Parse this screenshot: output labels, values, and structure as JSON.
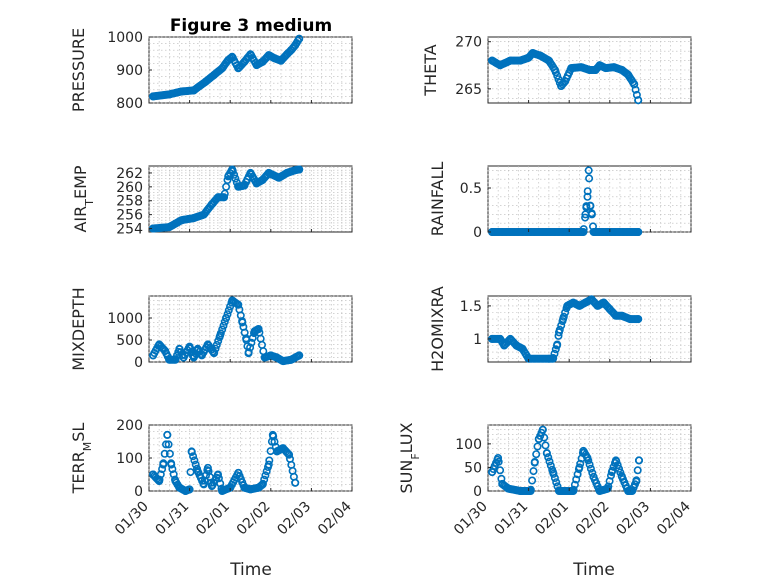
{
  "figure_title": "Figure 3 medium",
  "colors": {
    "marker": "#0072BD",
    "axis": "#262626",
    "grid": "#b9b9b9"
  },
  "x_ticks": [
    "01/30",
    "01/31",
    "02/01",
    "02/02",
    "02/03",
    "02/04"
  ],
  "x_label": "Time",
  "chart_data": [
    {
      "type": "scatter",
      "title": "Figure 3 medium",
      "ylabel": "PRESSURE",
      "xlabel": "",
      "xlim": [
        0,
        5
      ],
      "ylim": [
        800,
        1000
      ],
      "yticks": [
        {
          "v": 800,
          "label": "800"
        },
        {
          "v": 900,
          "label": "900"
        },
        {
          "v": 1000,
          "label": "1000"
        }
      ],
      "knots": [
        [
          0.1,
          820
        ],
        [
          0.5,
          826
        ],
        [
          0.8,
          835
        ],
        [
          1.1,
          838
        ],
        [
          1.4,
          865
        ],
        [
          1.6,
          885
        ],
        [
          1.8,
          905
        ],
        [
          1.95,
          930
        ],
        [
          2.05,
          940
        ],
        [
          2.2,
          905
        ],
        [
          2.35,
          925
        ],
        [
          2.5,
          948
        ],
        [
          2.65,
          915
        ],
        [
          2.8,
          925
        ],
        [
          2.95,
          945
        ],
        [
          3.1,
          935
        ],
        [
          3.25,
          928
        ],
        [
          3.4,
          948
        ],
        [
          3.5,
          960
        ],
        [
          3.6,
          975
        ],
        [
          3.7,
          995
        ]
      ]
    },
    {
      "type": "scatter",
      "title": "",
      "ylabel": "THETA",
      "xlabel": "",
      "xlim": [
        0,
        5
      ],
      "ylim": [
        263.5,
        270.5
      ],
      "yticks": [
        {
          "v": 265,
          "label": "265"
        },
        {
          "v": 270,
          "label": "270"
        }
      ],
      "knots": [
        [
          0.1,
          268
        ],
        [
          0.3,
          267.5
        ],
        [
          0.55,
          268
        ],
        [
          0.8,
          268
        ],
        [
          1.0,
          268.3
        ],
        [
          1.1,
          268.8
        ],
        [
          1.3,
          268.5
        ],
        [
          1.5,
          268
        ],
        [
          1.65,
          267
        ],
        [
          1.8,
          265.3
        ],
        [
          1.9,
          265.8
        ],
        [
          2.05,
          267.2
        ],
        [
          2.3,
          267.3
        ],
        [
          2.5,
          267
        ],
        [
          2.65,
          267
        ],
        [
          2.75,
          267.5
        ],
        [
          2.9,
          267.2
        ],
        [
          3.1,
          267.3
        ],
        [
          3.3,
          267
        ],
        [
          3.45,
          266.5
        ],
        [
          3.6,
          265.5
        ],
        [
          3.7,
          263.8
        ]
      ]
    },
    {
      "type": "scatter",
      "title": "",
      "ylabel": "AIR_TEMP",
      "xlabel": "",
      "xlim": [
        0,
        5
      ],
      "ylim": [
        253.5,
        263
      ],
      "yticks": [
        {
          "v": 254,
          "label": "254"
        },
        {
          "v": 256,
          "label": "256"
        },
        {
          "v": 258,
          "label": "258"
        },
        {
          "v": 260,
          "label": "260"
        },
        {
          "v": 262,
          "label": "262"
        }
      ],
      "knots": [
        [
          0.1,
          254
        ],
        [
          0.5,
          254.2
        ],
        [
          0.8,
          255.2
        ],
        [
          1.1,
          255.5
        ],
        [
          1.35,
          256
        ],
        [
          1.55,
          257.5
        ],
        [
          1.7,
          258.5
        ],
        [
          1.85,
          258.5
        ],
        [
          1.95,
          261.5
        ],
        [
          2.05,
          262.5
        ],
        [
          2.2,
          260
        ],
        [
          2.35,
          260.2
        ],
        [
          2.5,
          262
        ],
        [
          2.65,
          260.5
        ],
        [
          2.8,
          261
        ],
        [
          2.95,
          262
        ],
        [
          3.2,
          261.3
        ],
        [
          3.4,
          262
        ],
        [
          3.6,
          262.4
        ],
        [
          3.7,
          262.5
        ]
      ]
    },
    {
      "type": "scatter",
      "title": "",
      "ylabel": "RAINFALL",
      "xlabel": "",
      "xlim": [
        0,
        5
      ],
      "ylim": [
        0,
        0.75
      ],
      "yticks": [
        {
          "v": 0,
          "label": "0"
        },
        {
          "v": 0.5,
          "label": "0.5"
        }
      ],
      "knots": [
        [
          0.1,
          0
        ],
        [
          2.35,
          0
        ],
        [
          2.4,
          0.2
        ],
        [
          2.42,
          0.28
        ],
        [
          2.45,
          0.4
        ],
        [
          2.48,
          0.7
        ],
        [
          2.52,
          0.3
        ],
        [
          2.56,
          0.2
        ],
        [
          2.6,
          0
        ],
        [
          3.7,
          0
        ]
      ]
    },
    {
      "type": "scatter",
      "title": "",
      "ylabel": "MIXDEPTH",
      "xlabel": "",
      "xlim": [
        0,
        5
      ],
      "ylim": [
        0,
        1500
      ],
      "yticks": [
        {
          "v": 0,
          "label": "0"
        },
        {
          "v": 500,
          "label": "500"
        },
        {
          "v": 1000,
          "label": "1000"
        }
      ],
      "knots": [
        [
          0.1,
          150
        ],
        [
          0.25,
          400
        ],
        [
          0.4,
          250
        ],
        [
          0.5,
          50
        ],
        [
          0.65,
          50
        ],
        [
          0.75,
          300
        ],
        [
          0.85,
          100
        ],
        [
          1.0,
          350
        ],
        [
          1.1,
          100
        ],
        [
          1.2,
          300
        ],
        [
          1.3,
          150
        ],
        [
          1.45,
          400
        ],
        [
          1.6,
          200
        ],
        [
          1.75,
          600
        ],
        [
          1.9,
          1000
        ],
        [
          2.05,
          1400
        ],
        [
          2.2,
          1300
        ],
        [
          2.3,
          900
        ],
        [
          2.4,
          500
        ],
        [
          2.45,
          200
        ],
        [
          2.6,
          700
        ],
        [
          2.7,
          750
        ],
        [
          2.85,
          100
        ],
        [
          3.0,
          150
        ],
        [
          3.15,
          100
        ],
        [
          3.3,
          20
        ],
        [
          3.5,
          50
        ],
        [
          3.7,
          150
        ]
      ]
    },
    {
      "type": "scatter",
      "title": "",
      "ylabel": "H2OMIXRA",
      "xlabel": "",
      "xlim": [
        0,
        5
      ],
      "ylim": [
        0.65,
        1.65
      ],
      "yticks": [
        {
          "v": 1,
          "label": "1"
        },
        {
          "v": 1.5,
          "label": "1.5"
        }
      ],
      "knots": [
        [
          0.1,
          1
        ],
        [
          0.3,
          1
        ],
        [
          0.4,
          0.9
        ],
        [
          0.55,
          1
        ],
        [
          0.7,
          0.9
        ],
        [
          0.85,
          0.85
        ],
        [
          1.0,
          0.7
        ],
        [
          1.5,
          0.7
        ],
        [
          1.6,
          0.7
        ],
        [
          1.7,
          0.9
        ],
        [
          1.75,
          1.1
        ],
        [
          1.85,
          1.3
        ],
        [
          1.95,
          1.5
        ],
        [
          2.1,
          1.55
        ],
        [
          2.25,
          1.5
        ],
        [
          2.4,
          1.55
        ],
        [
          2.55,
          1.6
        ],
        [
          2.7,
          1.5
        ],
        [
          2.85,
          1.55
        ],
        [
          3.0,
          1.45
        ],
        [
          3.15,
          1.35
        ],
        [
          3.3,
          1.35
        ],
        [
          3.5,
          1.3
        ],
        [
          3.7,
          1.3
        ]
      ]
    },
    {
      "type": "scatter",
      "title": "",
      "ylabel": "TERR_MSL",
      "xlabel": "Time",
      "xlim": [
        0,
        5
      ],
      "ylim": [
        0,
        200
      ],
      "yticks": [
        {
          "v": 0,
          "label": "0"
        },
        {
          "v": 100,
          "label": "100"
        },
        {
          "v": 200,
          "label": "200"
        }
      ],
      "knots": [
        [
          0.1,
          50
        ],
        [
          0.25,
          30
        ],
        [
          0.35,
          80
        ],
        [
          0.45,
          170
        ],
        [
          0.55,
          80
        ],
        [
          0.65,
          30
        ],
        [
          0.75,
          10
        ],
        [
          0.9,
          0
        ],
        [
          1.0,
          5
        ],
        [
          1.05,
          120
        ],
        [
          1.2,
          60
        ],
        [
          1.35,
          20
        ],
        [
          1.45,
          70
        ],
        [
          1.55,
          15
        ],
        [
          1.7,
          50
        ],
        [
          1.8,
          0
        ],
        [
          2.0,
          10
        ],
        [
          2.2,
          55
        ],
        [
          2.35,
          10
        ],
        [
          2.5,
          5
        ],
        [
          2.7,
          10
        ],
        [
          2.8,
          20
        ],
        [
          2.95,
          80
        ],
        [
          3.05,
          170
        ],
        [
          3.15,
          120
        ],
        [
          3.3,
          130
        ],
        [
          3.45,
          110
        ],
        [
          3.6,
          25
        ]
      ]
    },
    {
      "type": "scatter",
      "title": "",
      "ylabel": "SUN_FLUX",
      "xlabel": "Time",
      "xlim": [
        0,
        5
      ],
      "ylim": [
        0,
        140
      ],
      "yticks": [
        {
          "v": 0,
          "label": "0"
        },
        {
          "v": 50,
          "label": "50"
        },
        {
          "v": 100,
          "label": "100"
        }
      ],
      "knots": [
        [
          0.1,
          40
        ],
        [
          0.25,
          70
        ],
        [
          0.35,
          15
        ],
        [
          0.5,
          5
        ],
        [
          0.8,
          0
        ],
        [
          1.05,
          0
        ],
        [
          1.15,
          60
        ],
        [
          1.25,
          110
        ],
        [
          1.35,
          130
        ],
        [
          1.45,
          80
        ],
        [
          1.6,
          40
        ],
        [
          1.75,
          0
        ],
        [
          2.1,
          0
        ],
        [
          2.25,
          50
        ],
        [
          2.35,
          85
        ],
        [
          2.45,
          70
        ],
        [
          2.6,
          30
        ],
        [
          2.75,
          0
        ],
        [
          2.95,
          5
        ],
        [
          3.05,
          40
        ],
        [
          3.15,
          65
        ],
        [
          3.3,
          30
        ],
        [
          3.45,
          0
        ],
        [
          3.55,
          0
        ],
        [
          3.65,
          20
        ],
        [
          3.72,
          65
        ]
      ]
    }
  ]
}
